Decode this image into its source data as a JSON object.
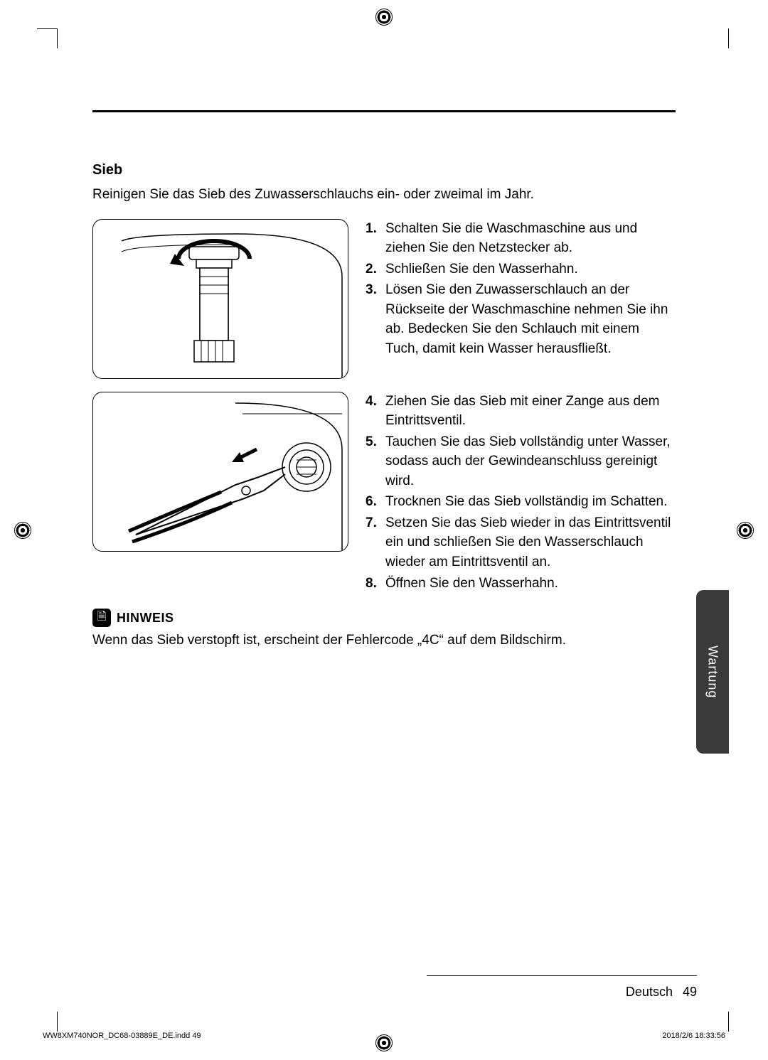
{
  "section": {
    "title": "Sieb",
    "intro": "Reinigen Sie das Sieb des Zuwasserschlauchs ein- oder zweimal im Jahr."
  },
  "steps_block1": [
    {
      "n": "1.",
      "t": "Schalten Sie die Waschmaschine aus und ziehen Sie den Netzstecker ab."
    },
    {
      "n": "2.",
      "t": "Schließen Sie den Wasserhahn."
    },
    {
      "n": "3.",
      "t": "Lösen Sie den Zuwasserschlauch an der Rückseite der Waschmaschine nehmen Sie ihn ab. Bedecken Sie den Schlauch mit einem Tuch, damit kein Wasser herausfließt."
    }
  ],
  "steps_block2": [
    {
      "n": "4.",
      "t": "Ziehen Sie das Sieb mit einer Zange aus dem Eintrittsventil."
    },
    {
      "n": "5.",
      "t": "Tauchen Sie das Sieb vollständig unter Wasser, sodass auch der Gewindeanschluss gereinigt wird."
    },
    {
      "n": "6.",
      "t": "Trocknen Sie das Sieb vollständig im Schatten."
    },
    {
      "n": "7.",
      "t": "Setzen Sie das Sieb wieder in das Eintrittsventil ein und schließen Sie den Wasserschlauch wieder am Eintrittsventil an."
    },
    {
      "n": "8.",
      "t": "Öffnen Sie den Wasserhahn."
    }
  ],
  "note": {
    "label": "HINWEIS",
    "text": "Wenn das Sieb verstopft ist, erscheint der Fehlercode „4C“ auf dem Bildschirm."
  },
  "side_tab": "Wartung",
  "footer": {
    "lang": "Deutsch",
    "page": "49"
  },
  "meta": {
    "left": "WW8XM740NOR_DC68-03889E_DE.indd   49",
    "right": "2018/2/6   18:33:56"
  },
  "colors": {
    "text": "#000000",
    "bg": "#ffffff",
    "tab_bg": "#3a3a3a",
    "tab_text": "#ffffff"
  }
}
